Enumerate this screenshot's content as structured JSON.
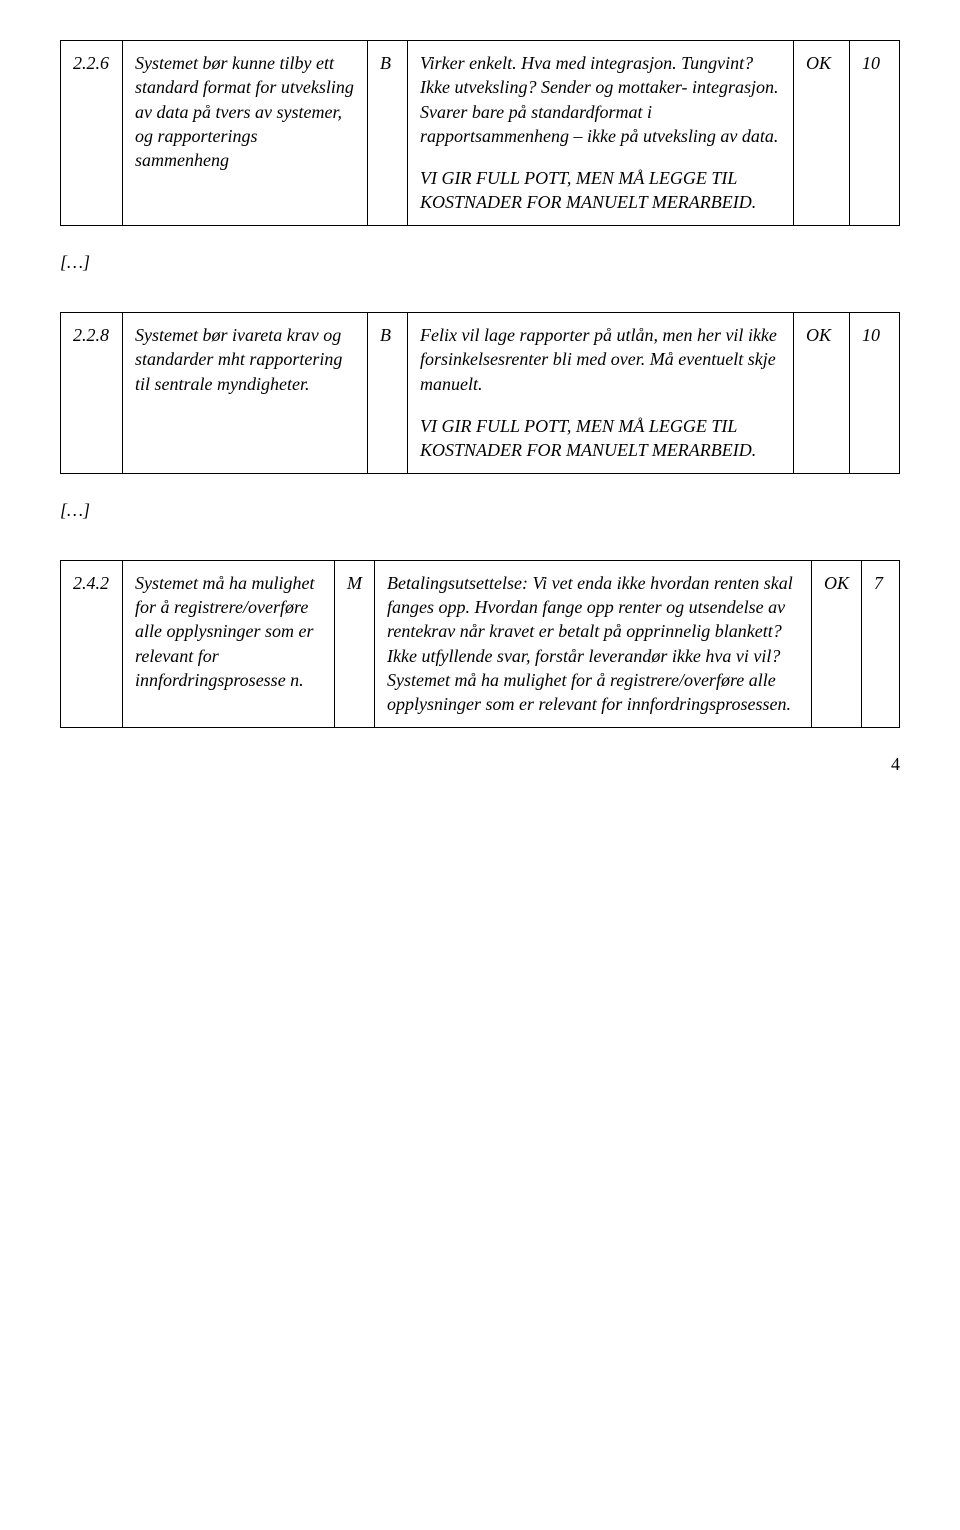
{
  "table1": {
    "row": {
      "id": "2.2.6",
      "desc": "Systemet bør kunne tilby ett standard format for utveksling av data på tvers av systemer, og rapporterings sammenheng",
      "code": "B",
      "comment_p1": "Virker enkelt. Hva med integrasjon. Tungvint? Ikke utveksling? Sender og mottaker- integrasjon. Svarer bare på standardformat i rapportsammenheng – ikke på utveksling av data.",
      "comment_p2": "VI GIR FULL POTT, MEN MÅ LEGGE TIL KOSTNADER FOR MANUELT MERARBEID.",
      "status": "OK",
      "score": "10"
    }
  },
  "ellipsis1": "[…]",
  "table2": {
    "row": {
      "id": "2.2.8",
      "desc": "Systemet bør ivareta krav og standarder mht rapportering til sentrale myndigheter.",
      "code": "B",
      "comment_p1": "Felix vil lage rapporter på utlån, men her vil ikke forsinkelsesrenter bli med over. Må eventuelt skje manuelt.",
      "comment_p2": "VI GIR FULL POTT, MEN MÅ LEGGE TIL KOSTNADER FOR MANUELT MERARBEID.",
      "status": "OK",
      "score": "10"
    }
  },
  "ellipsis2": "[…]",
  "table3": {
    "row": {
      "id": "2.4.2",
      "desc": "Systemet må ha mulighet for å registrere/overføre alle opplysninger som er relevant for innfordringsprosesse n.",
      "code": "M",
      "comment": "Betalingsutsettelse: Vi vet enda ikke hvordan renten skal fanges opp. Hvordan fange opp renter og utsendelse av rentekrav når kravet er betalt på opprinnelig blankett? Ikke utfyllende svar, forstår leverandør ikke hva vi vil? Systemet må ha mulighet for å registrere/overføre alle opplysninger som er relevant for innfordringsprosessen.",
      "status": "OK",
      "score": "7"
    }
  },
  "page_number": "4"
}
